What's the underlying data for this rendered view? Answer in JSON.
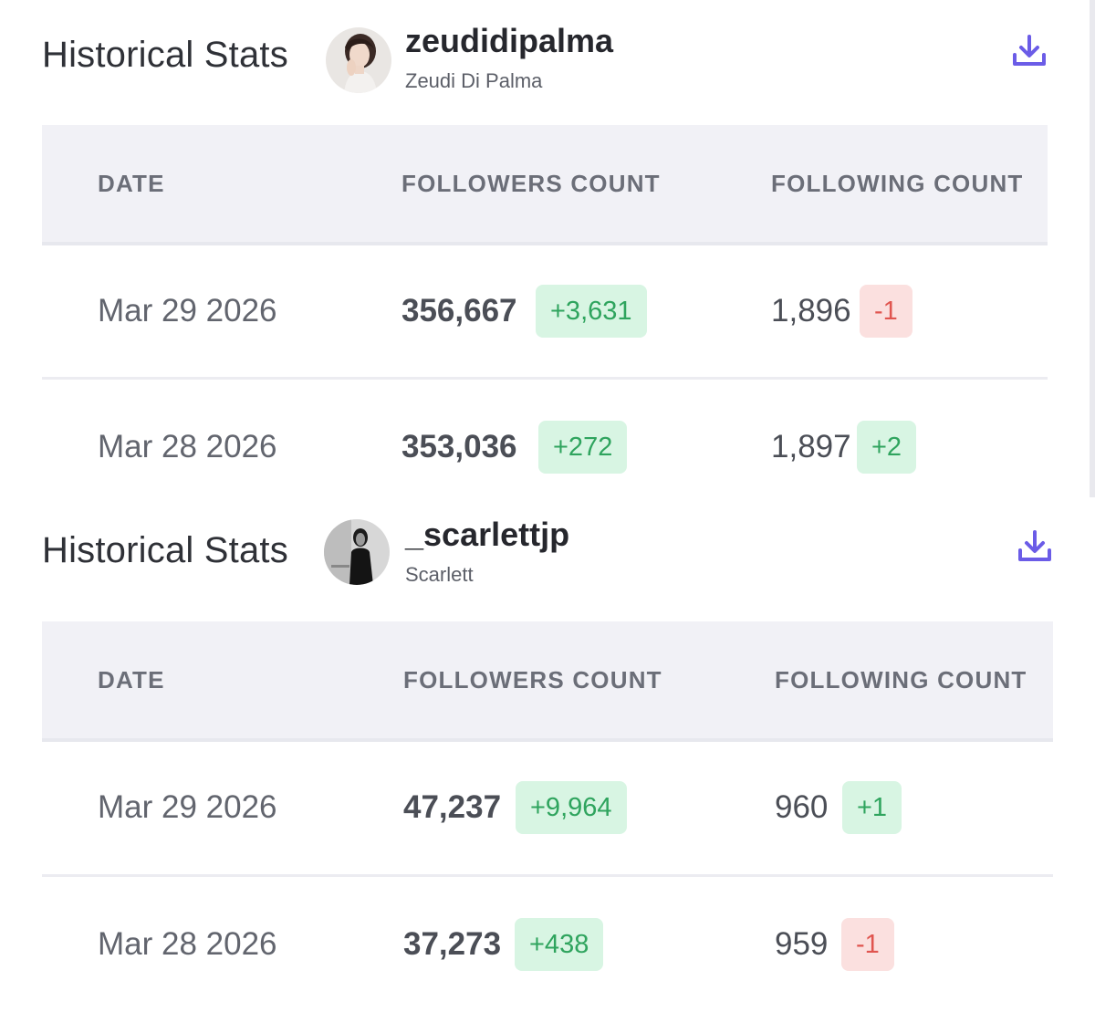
{
  "panels": [
    {
      "heading": "Historical Stats",
      "username": "zeudidipalma",
      "full_name": "Zeudi Di Palma",
      "avatar_icon": "profile-photo",
      "download_icon": "download-icon",
      "accent_color": "#6b5ce7",
      "columns": [
        "DATE",
        "FOLLOWERS COUNT",
        "FOLLOWING COUNT"
      ],
      "rows": [
        {
          "date": "Mar 29 2026",
          "followers": "356,667",
          "followers_change": "+3,631",
          "followers_trend": "up",
          "following": "1,896",
          "following_change": "-1",
          "following_trend": "down"
        },
        {
          "date": "Mar 28 2026",
          "followers": "353,036",
          "followers_change": "+272",
          "followers_trend": "up",
          "following": "1,897",
          "following_change": "+2",
          "following_trend": "up"
        }
      ]
    },
    {
      "heading": "Historical Stats",
      "username": "_scarlettjp",
      "full_name": "Scarlett",
      "avatar_icon": "profile-photo",
      "download_icon": "download-icon",
      "accent_color": "#6b5ce7",
      "columns": [
        "DATE",
        "FOLLOWERS COUNT",
        "FOLLOWING COUNT"
      ],
      "rows": [
        {
          "date": "Mar 29 2026",
          "followers": "47,237",
          "followers_change": "+9,964",
          "followers_trend": "up",
          "following": "960",
          "following_change": "+1",
          "following_trend": "up"
        },
        {
          "date": "Mar 28 2026",
          "followers": "37,273",
          "followers_change": "+438",
          "followers_trend": "up",
          "following": "959",
          "following_change": "-1",
          "following_trend": "down"
        }
      ]
    }
  ],
  "colors": {
    "positive_bg": "#d8f5e3",
    "positive_text": "#2fa45e",
    "negative_bg": "#fbe0df",
    "negative_text": "#e0554f",
    "header_bg": "#f1f1f6"
  }
}
